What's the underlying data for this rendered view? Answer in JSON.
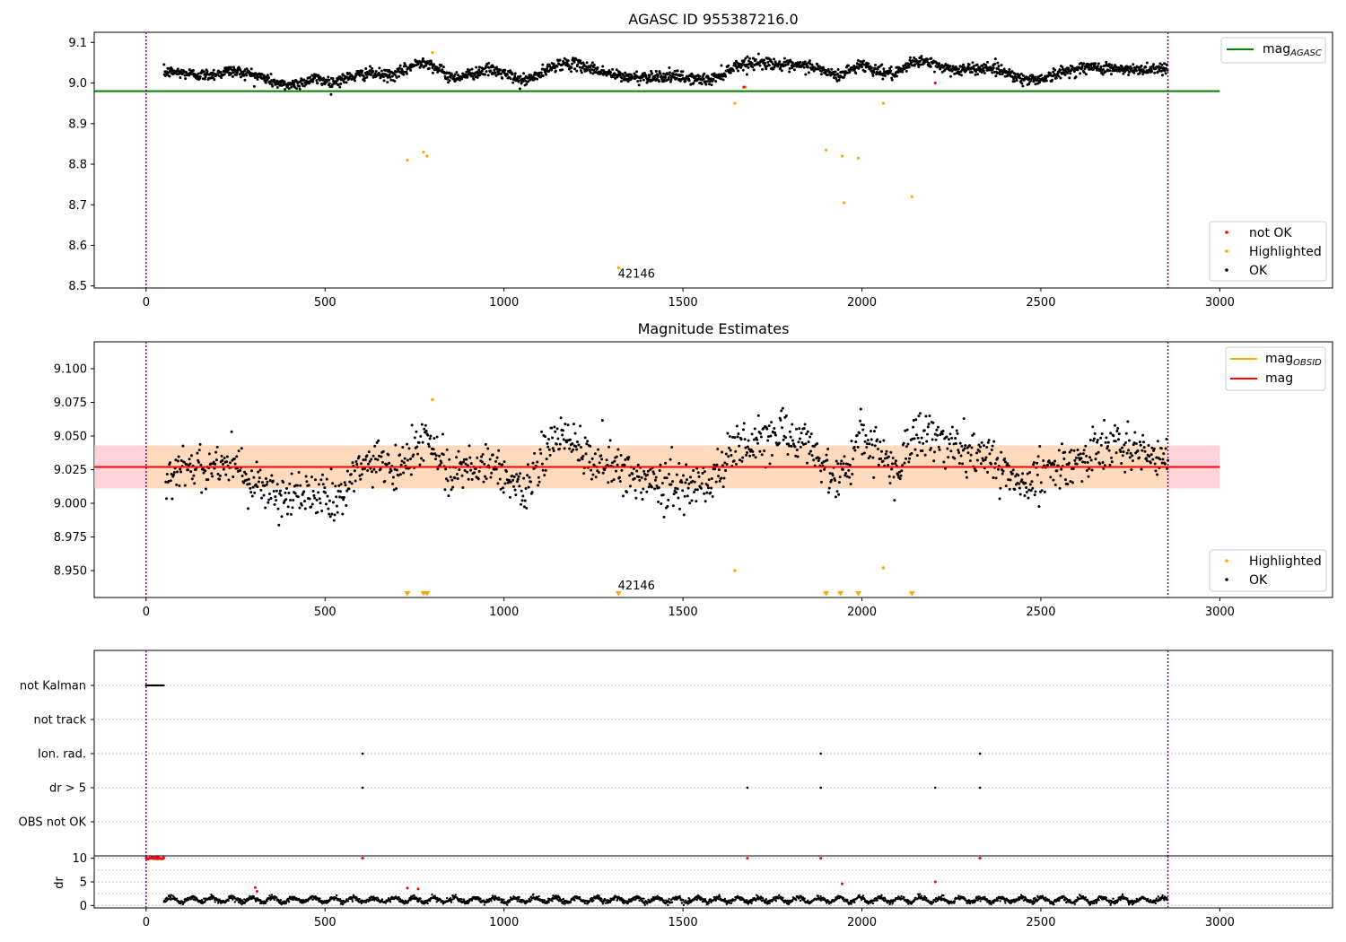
{
  "chart_data": [
    {
      "type": "scatter",
      "title": "AGASC ID 955387216.0",
      "xlim": [
        -145,
        3315
      ],
      "ylim": [
        8.495,
        9.125
      ],
      "xticks": [
        0,
        500,
        1000,
        1500,
        2000,
        2500,
        3000
      ],
      "yticks": [
        8.5,
        8.6,
        8.7,
        8.8,
        8.9,
        9.0,
        9.1
      ],
      "ytick_labels": [
        "8.5",
        "8.6",
        "8.7",
        "8.8",
        "8.9",
        "9.0",
        "9.1"
      ],
      "colors": {
        "ok": "#000000",
        "highlighted": "#ffa500",
        "not_ok": "#ff0000",
        "agasc_line": "#008000",
        "vline": "#800080"
      },
      "vlines": [
        0,
        2855
      ],
      "hline": {
        "name": "mag_AGASC",
        "y": 8.98,
        "x": [
          -145,
          3000
        ]
      },
      "annotation": {
        "text": "42146",
        "x": 1370,
        "y": 8.52
      },
      "legend": {
        "placement": "top-right",
        "entries": [
          {
            "label": "mag",
            "sub": "AGASC",
            "color": "#008000"
          }
        ]
      },
      "legend2": {
        "placement": "bottom-right",
        "entries": [
          {
            "label": "not OK",
            "color": "#ff0000"
          },
          {
            "label": "Highlighted",
            "color": "#ffa500"
          },
          {
            "label": "OK",
            "color": "#000000"
          }
        ]
      },
      "ok_series": {
        "x_range": [
          50,
          2855
        ],
        "profile": [
          [
            50,
            9.02
          ],
          [
            150,
            9.025
          ],
          [
            230,
            9.03
          ],
          [
            300,
            9.015
          ],
          [
            380,
            9.0
          ],
          [
            470,
            9.01
          ],
          [
            520,
            8.995
          ],
          [
            620,
            9.03
          ],
          [
            700,
            9.02
          ],
          [
            780,
            9.05
          ],
          [
            850,
            9.02
          ],
          [
            950,
            9.03
          ],
          [
            1050,
            9.005
          ],
          [
            1150,
            9.05
          ],
          [
            1250,
            9.03
          ],
          [
            1350,
            9.02
          ],
          [
            1450,
            9.01
          ],
          [
            1580,
            9.015
          ],
          [
            1650,
            9.04
          ],
          [
            1750,
            9.05
          ],
          [
            1850,
            9.045
          ],
          [
            1930,
            9.01
          ],
          [
            2000,
            9.05
          ],
          [
            2100,
            9.02
          ],
          [
            2150,
            9.05
          ],
          [
            2250,
            9.04
          ],
          [
            2350,
            9.035
          ],
          [
            2450,
            9.01
          ],
          [
            2550,
            9.025
          ],
          [
            2650,
            9.035
          ],
          [
            2700,
            9.04
          ],
          [
            2855,
            9.03
          ]
        ],
        "spread": 0.013
      },
      "highlighted": [
        [
          730,
          8.81
        ],
        [
          775,
          8.83
        ],
        [
          785,
          8.82
        ],
        [
          800,
          9.075
        ],
        [
          1320,
          8.545
        ],
        [
          1645,
          8.95
        ],
        [
          1675,
          8.99
        ],
        [
          1900,
          8.835
        ],
        [
          1945,
          8.82
        ],
        [
          1950,
          8.705
        ],
        [
          1990,
          8.815
        ],
        [
          2060,
          8.95
        ],
        [
          2140,
          8.72
        ]
      ],
      "not_ok": [
        [
          1670,
          8.99
        ],
        [
          2205,
          9.0
        ]
      ]
    },
    {
      "type": "scatter",
      "title": "Magnitude Estimates",
      "xlim": [
        -145,
        3315
      ],
      "ylim": [
        8.93,
        9.12
      ],
      "xticks": [
        0,
        500,
        1000,
        1500,
        2000,
        2500,
        3000
      ],
      "yticks": [
        8.95,
        8.975,
        9.0,
        9.025,
        9.05,
        9.075,
        9.1
      ],
      "ytick_labels": [
        "8.950",
        "8.975",
        "9.000",
        "9.025",
        "9.050",
        "9.075",
        "9.100"
      ],
      "colors": {
        "ok": "#000000",
        "highlighted": "#ffa500",
        "mag_line": "#ff0000",
        "band_outer": "#ffc0cb",
        "band_inner": "#ffdab9",
        "vline": "#800080"
      },
      "vlines": [
        0,
        2855
      ],
      "mag": 9.027,
      "band": [
        9.011,
        9.043
      ],
      "band_x": [
        -145,
        3000
      ],
      "annotation": {
        "text": "42146",
        "x": 1370,
        "y": 8.936
      },
      "legend": {
        "placement": "top-right",
        "entries": [
          {
            "label": "mag",
            "sub": "OBSID",
            "color": "#ffa500"
          },
          {
            "label": "mag",
            "sub": "",
            "color": "#ff0000"
          }
        ]
      },
      "legend2": {
        "placement": "bottom-right",
        "entries": [
          {
            "label": "Highlighted",
            "color": "#ffa500"
          },
          {
            "label": "OK",
            "color": "#000000"
          }
        ]
      },
      "highlighted": [
        [
          800,
          9.077
        ],
        [
          1645,
          8.95
        ],
        [
          2060,
          8.952
        ]
      ],
      "triangles_x": [
        730,
        775,
        785,
        1320,
        1900,
        1940,
        1990,
        2140
      ]
    },
    {
      "type": "scatter",
      "title": "",
      "xlim": [
        -145,
        3315
      ],
      "categories": [
        "not Kalman",
        "not track",
        "Ion. rad.",
        "dr > 5",
        "OBS not OK"
      ],
      "events": {
        "not Kalman": {
          "x_range": [
            0,
            50
          ]
        },
        "not track": {
          "x": []
        },
        "Ion. rad.": {
          "x": [
            605,
            1885,
            2330
          ]
        },
        "dr > 5": {
          "x": [
            605,
            1680,
            1885,
            2205,
            2330
          ]
        },
        "OBS not OK": {
          "x": []
        }
      },
      "vlines": [
        0,
        2855
      ],
      "colors": {
        "event": "#000000",
        "grid": "#b0b0b0",
        "vline": "#800080"
      }
    },
    {
      "type": "scatter",
      "ylabel": "dr",
      "xlim": [
        -145,
        3315
      ],
      "ylim": [
        -0.5,
        10.5
      ],
      "xticks": [
        0,
        500,
        1000,
        1500,
        2000,
        2500,
        3000
      ],
      "yticks": [
        0,
        5,
        10
      ],
      "ytick_labels": [
        "0",
        "5",
        "10"
      ],
      "colors": {
        "ok": "#000000",
        "bad": "#ff0000",
        "vline": "#800080"
      },
      "vlines": [
        0,
        2855
      ],
      "red_points": [
        [
          305,
          3.8
        ],
        [
          310,
          3.0
        ],
        [
          605,
          10
        ],
        [
          730,
          3.7
        ],
        [
          760,
          3.5
        ],
        [
          1680,
          10
        ],
        [
          1885,
          10
        ],
        [
          1945,
          4.6
        ],
        [
          2205,
          5.0
        ],
        [
          2330,
          10
        ]
      ],
      "red_band_x": [
        0,
        50
      ],
      "red_band_y": 10,
      "ok_series": {
        "x_range": [
          50,
          2855
        ],
        "mean": 1.2,
        "spread": 0.5
      }
    }
  ]
}
